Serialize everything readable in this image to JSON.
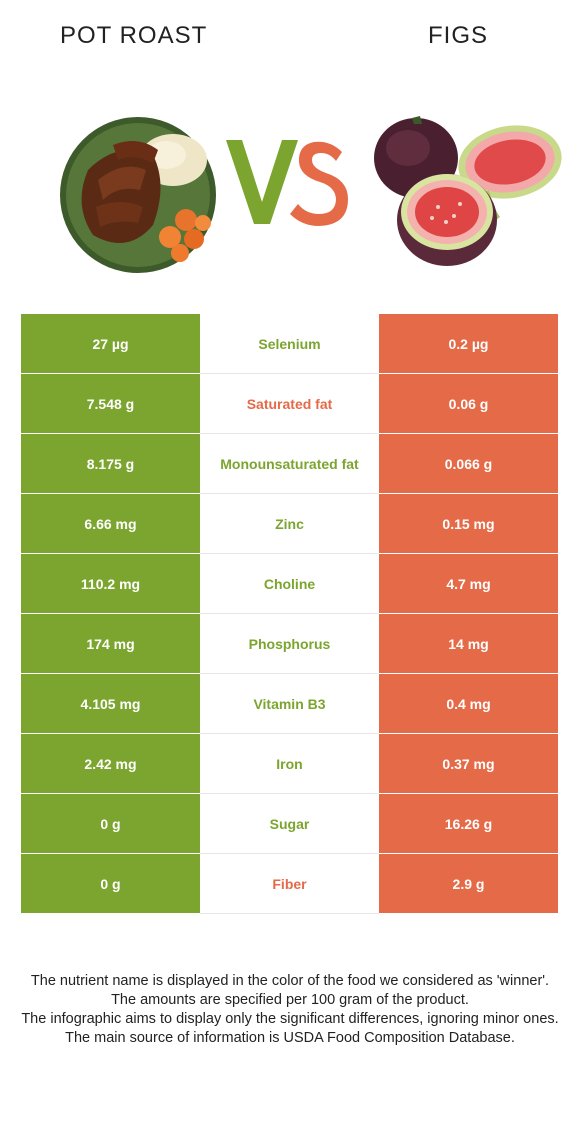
{
  "left_food": {
    "name": "POT ROAST",
    "color": "#7ba52e"
  },
  "right_food": {
    "name": "FIGS",
    "color": "#e56a48"
  },
  "vs": {
    "v": "V",
    "s": "S"
  },
  "rows": [
    {
      "left": "27 µg",
      "nutrient": "Selenium",
      "right": "0.2 µg",
      "winner": "left"
    },
    {
      "left": "7.548 g",
      "nutrient": "Saturated fat",
      "right": "0.06 g",
      "winner": "right"
    },
    {
      "left": "8.175 g",
      "nutrient": "Monounsaturated fat",
      "right": "0.066 g",
      "winner": "left"
    },
    {
      "left": "6.66 mg",
      "nutrient": "Zinc",
      "right": "0.15 mg",
      "winner": "left"
    },
    {
      "left": "110.2 mg",
      "nutrient": "Choline",
      "right": "4.7 mg",
      "winner": "left"
    },
    {
      "left": "174 mg",
      "nutrient": "Phosphorus",
      "right": "14 mg",
      "winner": "left"
    },
    {
      "left": "4.105 mg",
      "nutrient": "Vitamin B3",
      "right": "0.4 mg",
      "winner": "left"
    },
    {
      "left": "2.42 mg",
      "nutrient": "Iron",
      "right": "0.37 mg",
      "winner": "left"
    },
    {
      "left": "0 g",
      "nutrient": "Sugar",
      "right": "16.26 g",
      "winner": "left"
    },
    {
      "left": "0 g",
      "nutrient": "Fiber",
      "right": "2.9 g",
      "winner": "right"
    }
  ],
  "footnote": [
    "The nutrient name is displayed in the color of the food we considered as 'winner'.",
    "The amounts are specified per 100 gram of the product.",
    "The infographic aims to display only the significant differences, ignoring minor ones.",
    "The main source of information is USDA Food Composition Database."
  ]
}
